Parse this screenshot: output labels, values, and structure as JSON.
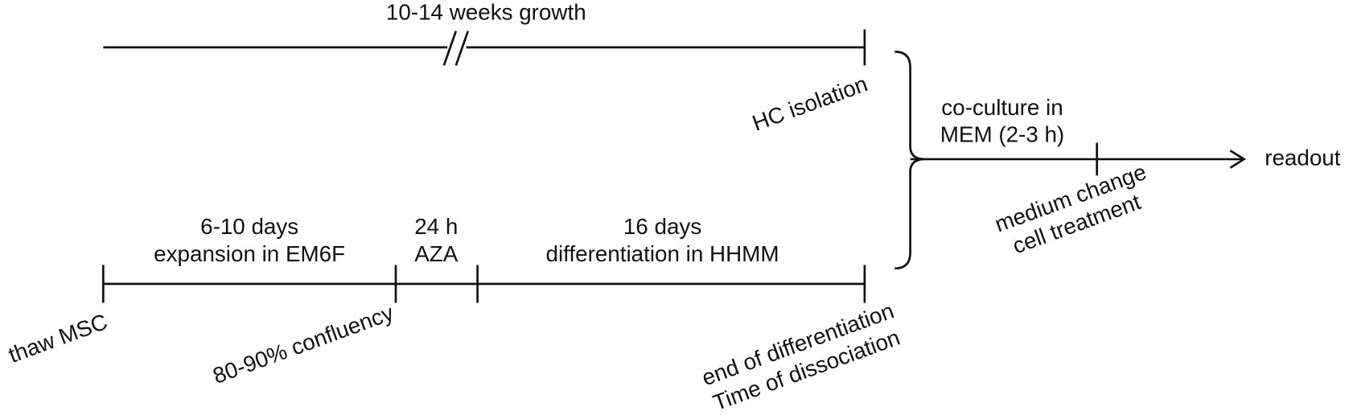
{
  "top_timeline": {
    "duration": "10-14 weeks growth",
    "end_event": "HC isolation"
  },
  "bottom_timeline": {
    "phases": [
      {
        "duration": "6-10 days",
        "activity": "expansion in EM6F"
      },
      {
        "duration": "24 h",
        "activity": "AZA"
      },
      {
        "duration": "16 days",
        "activity": "differentiation in HHMM"
      }
    ],
    "events": [
      "thaw MSC",
      "80-90% confluency"
    ],
    "end_event": [
      "end of differentiation",
      "Time of dissociation"
    ]
  },
  "coculture": {
    "label": [
      "co-culture in",
      "MEM (2-3 h)"
    ],
    "event": [
      "medium change",
      "cell treatment"
    ],
    "end": "readout"
  }
}
